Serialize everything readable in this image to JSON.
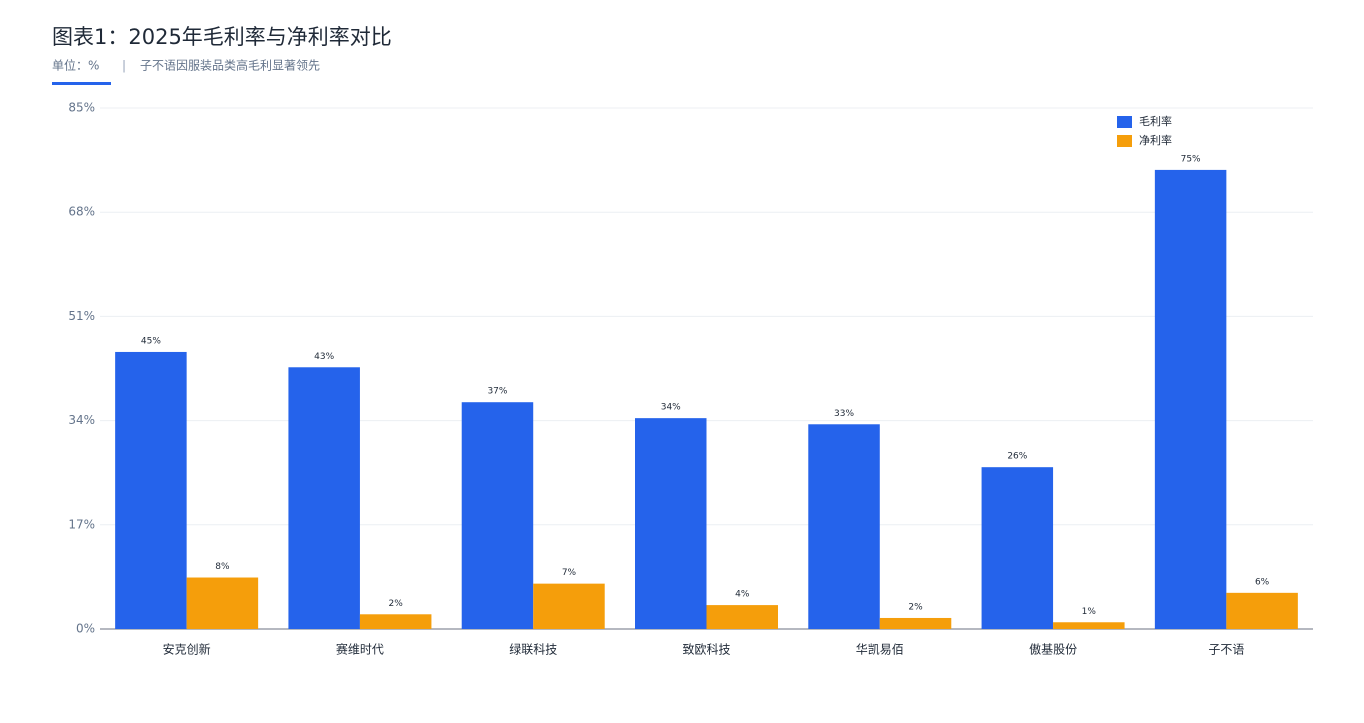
{
  "chart_data": {
    "type": "bar",
    "title": "图表1：2025年毛利率与净利率对比",
    "unit_label": "单位：%",
    "separator": "|",
    "subtitle": "子不语因服装品类高毛利显著领先",
    "categories": [
      "安克创新",
      "赛维时代",
      "绿联科技",
      "致欧科技",
      "华凯易佰",
      "傲基股份",
      "子不语"
    ],
    "series": [
      {
        "name": "毛利率",
        "color": "#2563eb",
        "values": [
          45.2,
          42.7,
          37.0,
          34.4,
          33.4,
          26.4,
          74.9
        ],
        "value_labels": [
          "45%",
          "43%",
          "37%",
          "34%",
          "33%",
          "26%",
          "75%"
        ]
      },
      {
        "name": "净利率",
        "color": "#f59e0b",
        "values": [
          8.4,
          2.4,
          7.4,
          3.9,
          1.8,
          1.1,
          5.9
        ],
        "value_labels": [
          "8%",
          "2%",
          "7%",
          "4%",
          "2%",
          "1%",
          "6%"
        ]
      }
    ],
    "ylim": [
      0,
      85
    ],
    "yticks": [
      {
        "value": 0,
        "label": "0%"
      },
      {
        "value": 17,
        "label": "17%"
      },
      {
        "value": 34,
        "label": "34%"
      },
      {
        "value": 51,
        "label": "51%"
      },
      {
        "value": 68,
        "label": "68%"
      },
      {
        "value": 85,
        "label": "85%"
      }
    ],
    "grid": true,
    "legend": "top-right"
  }
}
